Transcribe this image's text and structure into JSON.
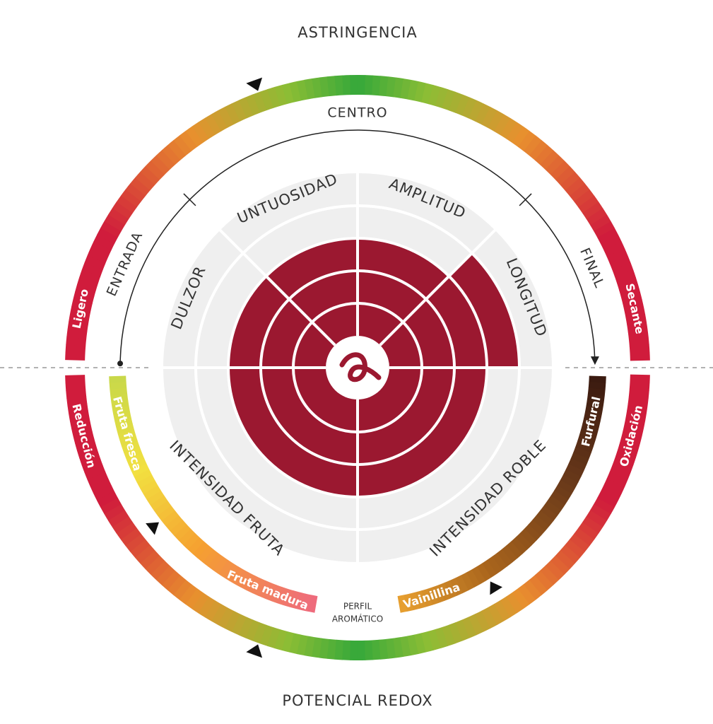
{
  "astringencia": {
    "title": "ASTRINGENCIA",
    "left": "Ligero",
    "right": "Secante",
    "marker": 39
  },
  "redox": {
    "title": "POTENCIAL REDOX",
    "left": "Reducción",
    "right": "Oxidación",
    "marker": 39
  },
  "fases": {
    "labels": [
      "ENTRADA",
      "CENTRO",
      "FINAL"
    ]
  },
  "radar": {
    "max": 5,
    "sectors": [
      {
        "label": "DULZOR",
        "value": 3
      },
      {
        "label": "UNTUOSIDAD",
        "value": 3
      },
      {
        "label": "AMPLITUD",
        "value": 3
      },
      {
        "label": "LONGITUD",
        "value": 4
      },
      {
        "label": "INTENSIDAD ROBLE",
        "value": 3
      },
      {
        "label": "INTENSIDAD FRUTA",
        "value": 3
      }
    ]
  },
  "perfil": {
    "label_lines": [
      "PERFIL",
      "AROMÁTICO"
    ],
    "fruta": {
      "start": "Fruta fresca",
      "end": "Fruta madura",
      "marker": 46
    },
    "roble": {
      "start": "Furfural",
      "end": "Vainillina",
      "marker": 72
    }
  }
}
